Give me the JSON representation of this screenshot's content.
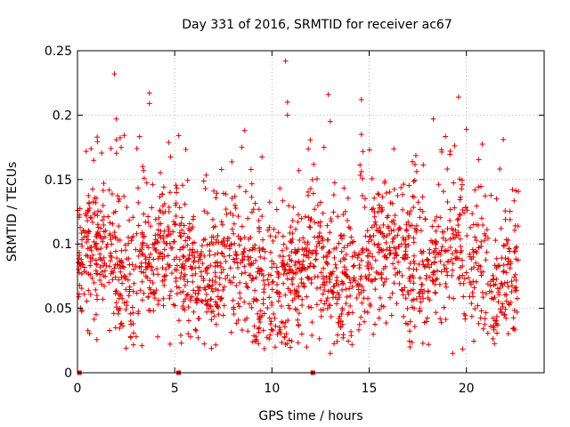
{
  "chart_data": {
    "type": "scatter",
    "title": "Day 331 of 2016, SRMTID for receiver ac67",
    "xlabel": "GPS time / hours",
    "ylabel": "SRMTID / TECUs",
    "xlim": [
      0,
      24
    ],
    "ylim": [
      0,
      0.25
    ],
    "xticks": [
      0,
      5,
      10,
      15,
      20
    ],
    "xtick_labels": [
      "0",
      "5",
      "10",
      "15",
      "20"
    ],
    "yticks": [
      0,
      0.05,
      0.1,
      0.15,
      0.2,
      0.25
    ],
    "ytick_labels": [
      "0",
      "0.05",
      "0.1",
      "0.15",
      "0.2",
      "0.25"
    ],
    "grid": true,
    "marker": "+",
    "color": "#dd0000",
    "series": [
      {
        "name": "SRMTID",
        "x_range_hours": [
          0,
          22.7
        ],
        "approx_point_count": 1900,
        "typical_range": [
          0.03,
          0.14
        ],
        "median": 0.08,
        "zero_valued_x": [
          0.1,
          5.2,
          12.1
        ],
        "highlight_points": [
          {
            "x": 1.9,
            "y": 0.232
          },
          {
            "x": 2.0,
            "y": 0.197
          },
          {
            "x": 3.7,
            "y": 0.217
          },
          {
            "x": 3.7,
            "y": 0.209
          },
          {
            "x": 8.6,
            "y": 0.188
          },
          {
            "x": 10.7,
            "y": 0.242
          },
          {
            "x": 10.8,
            "y": 0.21
          },
          {
            "x": 10.8,
            "y": 0.2
          },
          {
            "x": 12.9,
            "y": 0.216
          },
          {
            "x": 13.0,
            "y": 0.195
          },
          {
            "x": 14.6,
            "y": 0.212
          },
          {
            "x": 14.6,
            "y": 0.185
          },
          {
            "x": 18.3,
            "y": 0.197
          },
          {
            "x": 19.6,
            "y": 0.214
          },
          {
            "x": 20.0,
            "y": 0.189
          },
          {
            "x": 21.9,
            "y": 0.181
          },
          {
            "x": 13.0,
            "y": 0.015
          },
          {
            "x": 19.3,
            "y": 0.015
          },
          {
            "x": 17.1,
            "y": 0.02
          }
        ]
      }
    ]
  }
}
